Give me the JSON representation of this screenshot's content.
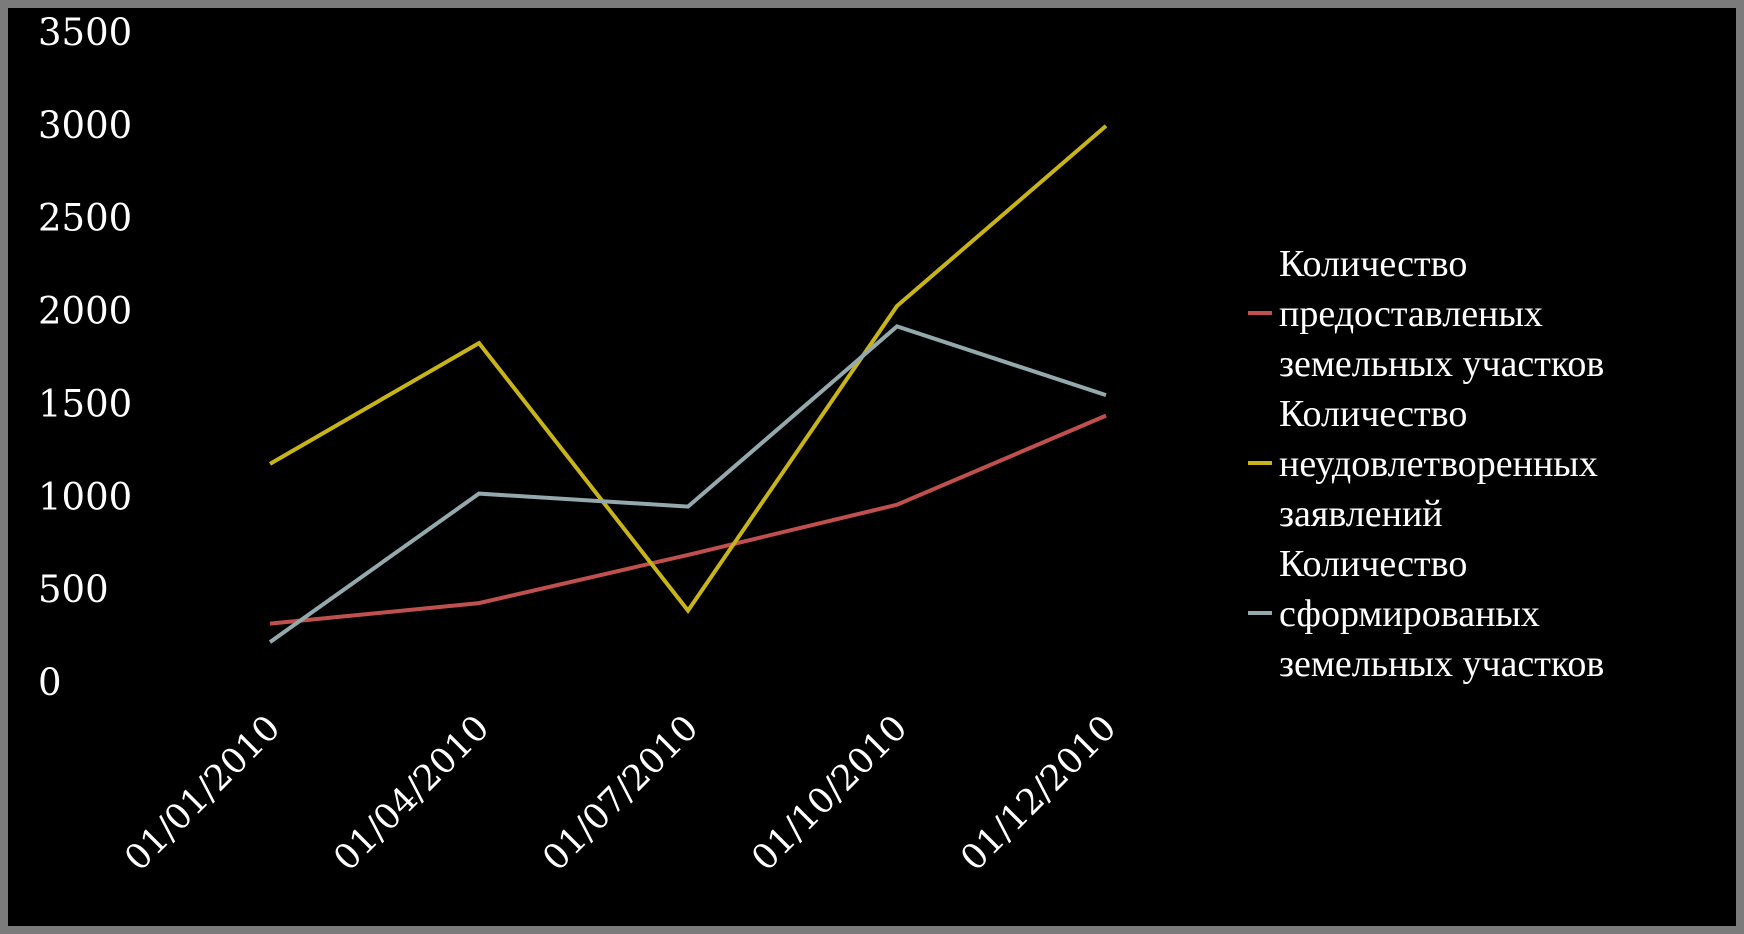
{
  "chart_data": {
    "type": "line",
    "x": [
      "01/01/2010",
      "01/04/2010",
      "01/07/2010",
      "01/10/2010",
      "01/12/2010"
    ],
    "yticks": [
      "0",
      "500",
      "1000",
      "1500",
      "2000",
      "2500",
      "3000",
      "3500"
    ],
    "ylim": [
      0,
      3500
    ],
    "grid": false,
    "legend_position": "right",
    "series": [
      {
        "name_lines": [
          "Количество",
          "предоставленых",
          "земельных участков"
        ],
        "color": "#c0504d",
        "values": [
          320,
          430,
          690,
          960,
          1440
        ]
      },
      {
        "name_lines": [
          "Количество",
          "неудовлетворенных",
          "заявлений"
        ],
        "color": "#c8b418",
        "values": [
          1180,
          1830,
          390,
          2030,
          3000
        ]
      },
      {
        "name_lines": [
          "Количество",
          "сформированых",
          "земельных участков"
        ],
        "color": "#93a9ad",
        "values": [
          220,
          1020,
          950,
          1920,
          1550
        ]
      }
    ]
  }
}
